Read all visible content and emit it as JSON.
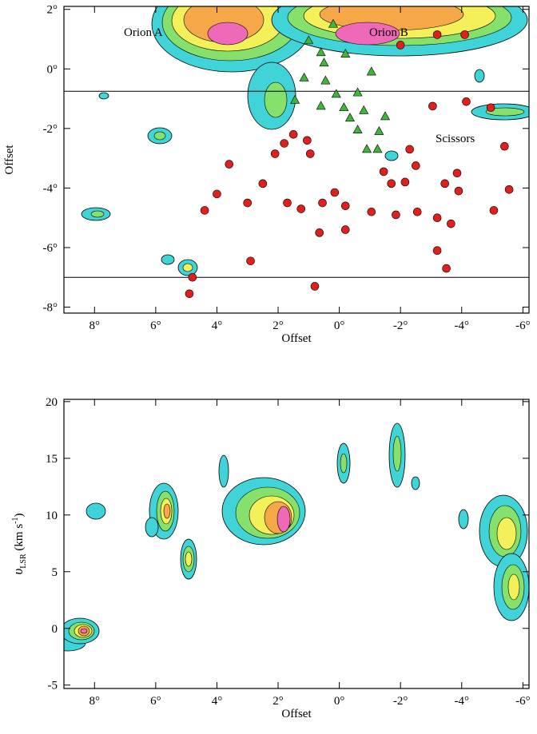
{
  "chart_data": [
    {
      "type": "scatter",
      "xlabel": "Offset",
      "ylabel": "Offset",
      "annotations": [
        "Orion A",
        "Orion B",
        "Scissors"
      ],
      "xlim": [
        9,
        -6.2
      ],
      "ylim": [
        -8.2,
        2.1
      ],
      "xticks": [
        {
          "value": 8,
          "label": "8°"
        },
        {
          "value": 6,
          "label": "6°"
        },
        {
          "value": 4,
          "label": "4°"
        },
        {
          "value": 2,
          "label": "2°"
        },
        {
          "value": 0,
          "label": "0°"
        },
        {
          "value": -2,
          "label": "-2°"
        },
        {
          "value": -4,
          "label": "-4°"
        },
        {
          "value": -6,
          "label": "-6°"
        }
      ],
      "yticks": [
        {
          "value": 2,
          "label": "2°"
        },
        {
          "value": 0,
          "label": "0°"
        },
        {
          "value": -2,
          "label": "-2°"
        },
        {
          "value": -4,
          "label": "-4°"
        },
        {
          "value": -6,
          "label": "-6°"
        },
        {
          "value": -8,
          "label": "-8°"
        }
      ],
      "hlines": [
        -0.75,
        -7.0
      ],
      "series": [
        {
          "color": "#e0201c",
          "marker": "circle",
          "x": [
            2.1,
            1.8,
            1.5,
            3.6,
            4.0,
            4.4,
            3.0,
            1.7,
            1.25,
            0.55,
            0.15,
            -0.2,
            -1.05,
            -1.85,
            -2.55,
            -3.2,
            -3.65,
            0.65,
            -0.2,
            -3.2,
            -3.5,
            -5.4,
            -4.95,
            -4.15,
            -3.05,
            -2.3,
            -2.15,
            -1.7,
            -1.45,
            -2.5,
            -3.45,
            -3.85,
            -3.9,
            -5.55,
            -5.05,
            4.8,
            4.9,
            1.05,
            0.95,
            2.5,
            2.9,
            0.8,
            -3.2,
            -4.1,
            -2.0
          ],
          "values": [
            -2.85,
            -2.5,
            -2.2,
            -3.2,
            -4.2,
            -4.75,
            -4.5,
            -4.5,
            -4.7,
            -4.5,
            -4.15,
            -4.6,
            -4.8,
            -4.9,
            -4.8,
            -5.0,
            -5.2,
            -5.5,
            -5.4,
            -6.1,
            -6.7,
            -2.6,
            -1.3,
            -1.1,
            -1.25,
            -2.7,
            -3.8,
            -3.85,
            -3.45,
            -3.25,
            -3.85,
            -3.5,
            -4.1,
            -4.05,
            -4.75,
            -7.0,
            -7.55,
            -2.4,
            -2.85,
            -3.85,
            -6.45,
            -7.3,
            1.15,
            1.15,
            0.8
          ]
        },
        {
          "color": "#3fb53a",
          "marker": "triangle",
          "x": [
            -0.2,
            0.6,
            -1.05,
            0.45,
            1.15,
            0.1,
            -0.6,
            0.6,
            -0.15,
            -0.8,
            -0.6,
            -1.3,
            -1.25,
            -0.9,
            0.5,
            0.2,
            1.45,
            -1.5,
            1.0,
            -0.35
          ],
          "values": [
            0.5,
            0.55,
            -0.1,
            -0.4,
            -0.3,
            -0.85,
            -0.8,
            -1.25,
            -1.3,
            -1.4,
            -2.05,
            -2.1,
            -2.7,
            -2.7,
            0.2,
            1.5,
            -1.05,
            -1.6,
            0.95,
            -1.65
          ]
        }
      ]
    },
    {
      "type": "contour",
      "xlabel": "Offset",
      "ylabel_parts": [
        "υ",
        "LSR",
        " (km s",
        "-1",
        ")"
      ],
      "xlim": [
        9,
        -6.2
      ],
      "ylim": [
        -5.3,
        20.2
      ],
      "xticks": [
        {
          "value": 8,
          "label": "8°"
        },
        {
          "value": 6,
          "label": "6°"
        },
        {
          "value": 4,
          "label": "4°"
        },
        {
          "value": 2,
          "label": "2°"
        },
        {
          "value": 0,
          "label": "0°"
        },
        {
          "value": -2,
          "label": "-2°"
        },
        {
          "value": -4,
          "label": "-4°"
        },
        {
          "value": -6,
          "label": "-6°"
        }
      ],
      "yticks": [
        20,
        15,
        10,
        5,
        0,
        -5
      ]
    }
  ]
}
